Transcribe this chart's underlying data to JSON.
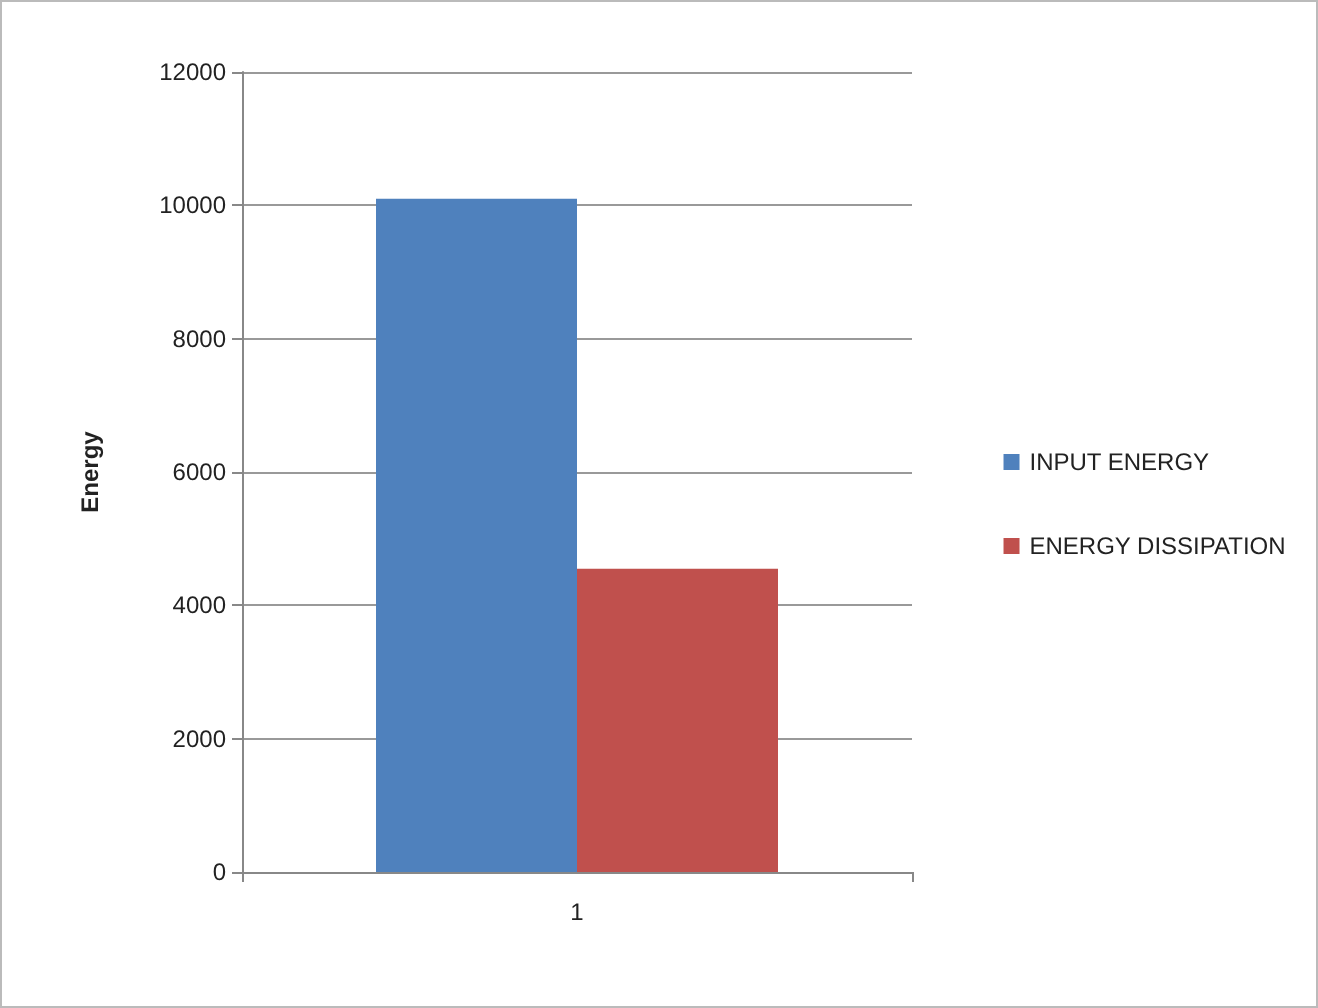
{
  "chart_data": {
    "type": "bar",
    "ylabel": "Energy",
    "categories": [
      "1"
    ],
    "series": [
      {
        "name": "INPUT ENERGY",
        "color": "#4f81bd",
        "values": [
          10100
        ]
      },
      {
        "name": "ENERGY DISSIPATION",
        "color": "#c0504d",
        "values": [
          4550
        ]
      }
    ],
    "ylim": [
      0,
      12000
    ],
    "yticks": [
      0,
      2000,
      4000,
      6000,
      8000,
      10000,
      12000
    ],
    "grid": "y",
    "legend": "right"
  }
}
